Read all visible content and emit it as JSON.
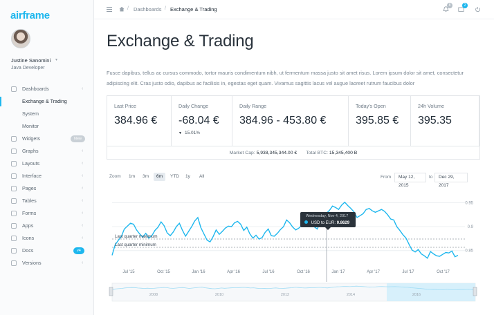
{
  "brand": "airframe",
  "user": {
    "name": "Justine Sanomini",
    "role": "Java Developer"
  },
  "sidebar": {
    "items": [
      {
        "label": "Dashboards",
        "icon": "home-icon"
      },
      {
        "label": "Exchange & Trading",
        "sub": true,
        "active": true
      },
      {
        "label": "System",
        "sub": true
      },
      {
        "label": "Monitor",
        "sub": true
      },
      {
        "label": "Widgets",
        "icon": "widgets-icon",
        "badge": "New"
      },
      {
        "label": "Graphs",
        "icon": "graphs-icon"
      },
      {
        "label": "Layouts",
        "icon": "layouts-icon"
      },
      {
        "label": "Interface",
        "icon": "interface-icon"
      },
      {
        "label": "Pages",
        "icon": "pages-icon"
      },
      {
        "label": "Tables",
        "icon": "tables-icon"
      },
      {
        "label": "Forms",
        "icon": "forms-icon"
      },
      {
        "label": "Apps",
        "icon": "apps-icon"
      },
      {
        "label": "Icons",
        "icon": "icons-icon"
      },
      {
        "label": "Docs",
        "icon": "docs-icon",
        "badge": "v4"
      },
      {
        "label": "Versions",
        "icon": "versions-icon"
      }
    ]
  },
  "topbar": {
    "breadcrumb": [
      "Dashboards",
      "Exchange & Trading"
    ],
    "notifications_count": "8",
    "messages_count": "2"
  },
  "page": {
    "title": "Exchange & Trading",
    "intro": "Fusce dapibus, tellus ac cursus commodo, tortor mauris condimentum nibh, ut fermentum massa justo sit amet risus. Lorem ipsum dolor sit amet, consectetur adipiscing elit. Cras justo odio, dapibus ac facilisis in, egestas eget quam. Vivamus sagittis lacus vel augue laoreet rutrum faucibus dolor"
  },
  "stats": {
    "last_price": {
      "label": "Last Price",
      "value": "384.96 €"
    },
    "daily_change": {
      "label": "Daily Change",
      "value": "-68.04 €",
      "sub": "15.01%"
    },
    "daily_range": {
      "label": "Daily Range",
      "value": "384.96 - 453.80 €"
    },
    "todays_open": {
      "label": "Today's Open",
      "value": "395.85 €"
    },
    "volume": {
      "label": "24h Volume",
      "value": "395.35"
    },
    "footer": {
      "market_cap_label": "Market Cap:",
      "market_cap": "5,938,345,344.00 €",
      "total_btc_label": "Total BTC:",
      "total_btc": "15,345,400 B"
    }
  },
  "chart_controls": {
    "zoom_label": "Zoom",
    "zoom_options": [
      "1m",
      "3m",
      "6m",
      "YTD",
      "1y",
      "All"
    ],
    "selected_zoom": "6m",
    "from_label": "From",
    "from_date": "May 12, 2015",
    "to_label": "to",
    "to_date": "Dec 29, 2017"
  },
  "chart_data": {
    "type": "line",
    "series": [
      {
        "name": "USD to EUR"
      }
    ],
    "x_ticks": [
      "Jul '15",
      "Oct '15",
      "Jan '16",
      "Apr '16",
      "Jul '16",
      "Oct '16",
      "Jan '17",
      "Apr '17",
      "Jul '17",
      "Oct '17"
    ],
    "y_ticks": [
      "0.95",
      "0.9",
      "0.85"
    ],
    "plot_lines": [
      "Last quarter maximum",
      "Last quarter minimum"
    ],
    "values": [
      0.84,
      0.862,
      0.871,
      0.879,
      0.895,
      0.901,
      0.907,
      0.905,
      0.893,
      0.885,
      0.878,
      0.886,
      0.876,
      0.881,
      0.892,
      0.899,
      0.91,
      0.902,
      0.887,
      0.881,
      0.889,
      0.9,
      0.907,
      0.892,
      0.88,
      0.89,
      0.9,
      0.912,
      0.919,
      0.898,
      0.885,
      0.872,
      0.868,
      0.879,
      0.893,
      0.884,
      0.89,
      0.897,
      0.901,
      0.9,
      0.908,
      0.911,
      0.905,
      0.892,
      0.899,
      0.885,
      0.876,
      0.882,
      0.874,
      0.877,
      0.888,
      0.895,
      0.881,
      0.88,
      0.886,
      0.894,
      0.9,
      0.914,
      0.908,
      0.899,
      0.893,
      0.897,
      0.903,
      0.902,
      0.909,
      0.91,
      0.9,
      0.895,
      0.909,
      0.919,
      0.928,
      0.934,
      0.943,
      0.94,
      0.936,
      0.945,
      0.951,
      0.944,
      0.938,
      0.931,
      0.919,
      0.923,
      0.927,
      0.936,
      0.938,
      0.933,
      0.93,
      0.933,
      0.936,
      0.932,
      0.925,
      0.916,
      0.914,
      0.9,
      0.892,
      0.883,
      0.876,
      0.863,
      0.851,
      0.847,
      0.852,
      0.843,
      0.839,
      0.834,
      0.848,
      0.843,
      0.839,
      0.838,
      0.842,
      0.846,
      0.845,
      0.849,
      0.837,
      0.84
    ],
    "tooltip": {
      "date": "Wednesday, Nov 4, 2017",
      "series": "USD to EUR",
      "value": "0.8629"
    },
    "navigator_years": [
      "2008",
      "2010",
      "2012",
      "2014",
      "2016"
    ]
  },
  "colors": {
    "accent": "#1eb7ee",
    "text": "#1f2a35",
    "muted": "#6d7a86"
  }
}
